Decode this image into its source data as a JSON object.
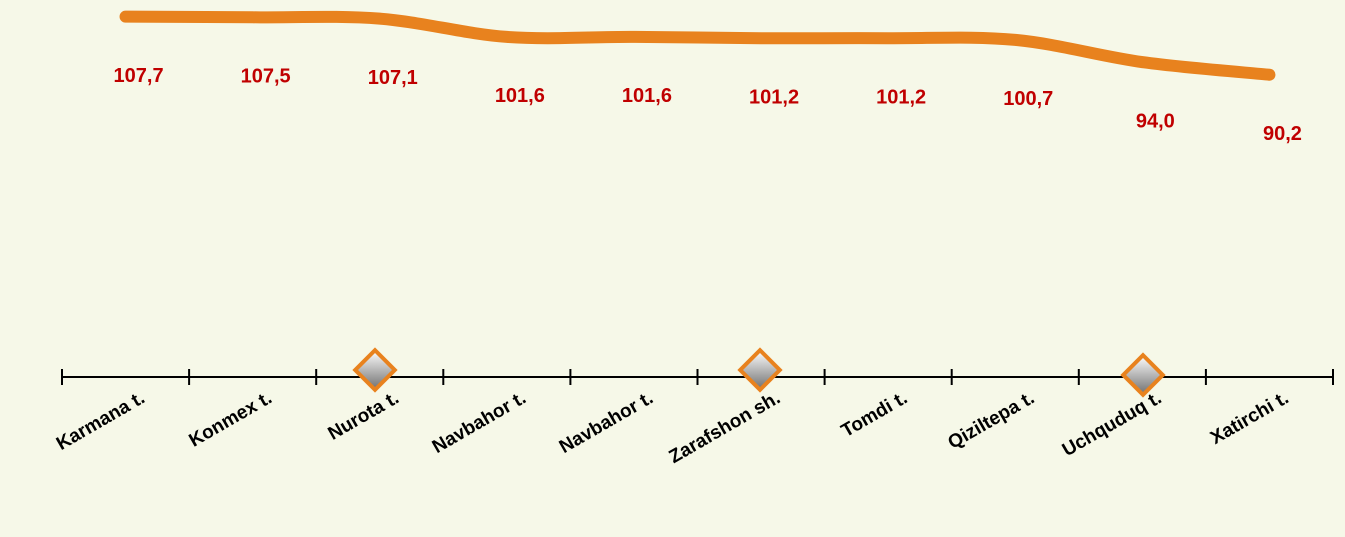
{
  "chart_data": {
    "type": "line",
    "categories": [
      "Karmana t.",
      "Konmex t.",
      "Nurota t.",
      "Navbahor t.",
      "Navbahor t.",
      "Zarafshon sh.",
      "Tomdi t.",
      "Qiziltepa t.",
      "Uchquduq t.",
      "Xatirchi t."
    ],
    "series": [
      {
        "name": "",
        "color": "#e8821e",
        "values": [
          107.7,
          107.5,
          107.1,
          101.6,
          101.6,
          101.2,
          101.2,
          100.7,
          94.0,
          90.2
        ],
        "value_labels": [
          "107,7",
          "107,5",
          "107,1",
          "101,6",
          "101,6",
          "101,2",
          "101,2",
          "100,7",
          "94,0",
          "90,2"
        ]
      }
    ],
    "ylim": [
      60,
      110
    ]
  }
}
